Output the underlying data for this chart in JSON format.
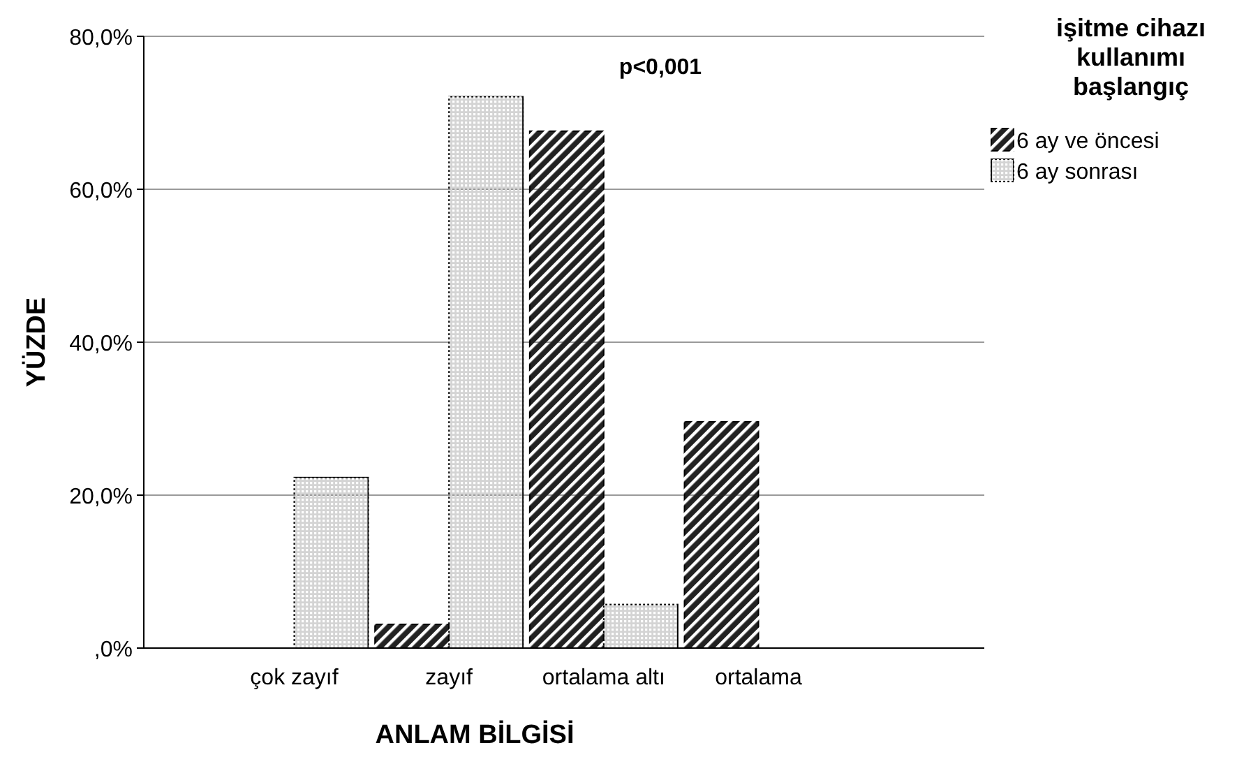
{
  "chart_data": {
    "type": "bar",
    "xlabel": "ANLAM BİLGİSİ",
    "ylabel": "YÜZDE",
    "legend_title": "işitme cihazı kullanımı başlangıç",
    "categories": [
      "çok zayıf",
      "zayıf",
      "ortalama altı",
      "ortalama"
    ],
    "series": [
      {
        "name": "6 ay ve öncesi",
        "color": "#222222",
        "values": [
          0,
          3.1,
          67.6,
          29.6
        ]
      },
      {
        "name": "6 ay sonrası",
        "color": "#d4d4d4",
        "values": [
          22.3,
          72.1,
          5.7,
          0
        ]
      }
    ],
    "ylim": [
      0,
      80
    ],
    "yticks": [
      {
        "value": 0,
        "label": ",0%"
      },
      {
        "value": 20,
        "label": "20,0%"
      },
      {
        "value": 40,
        "label": "40,0%"
      },
      {
        "value": 60,
        "label": "60,0%"
      },
      {
        "value": 80,
        "label": "80,0%"
      }
    ],
    "grid": "y",
    "legend": "top right",
    "annotations": [
      "p<0,001"
    ]
  }
}
